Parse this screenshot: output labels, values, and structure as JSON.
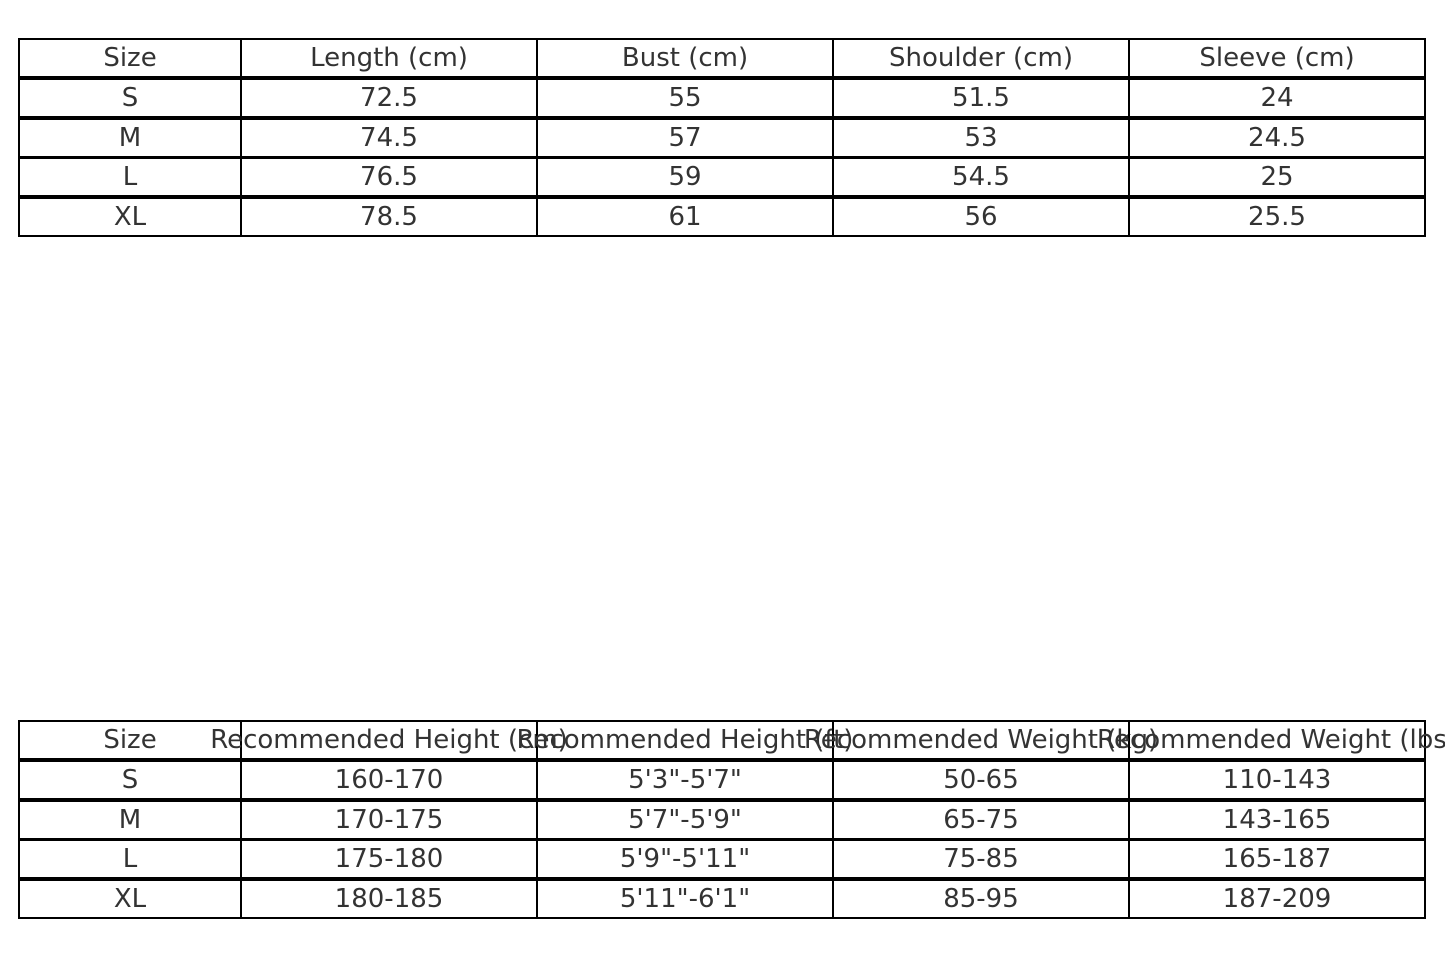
{
  "chart_data": [
    {
      "type": "table",
      "columns": [
        "Size",
        "Length (cm)",
        "Bust (cm)",
        "Shoulder (cm)",
        "Sleeve (cm)"
      ],
      "rows": [
        [
          "S",
          "72.5",
          "55",
          "51.5",
          "24"
        ],
        [
          "M",
          "74.5",
          "57",
          "53",
          "24.5"
        ],
        [
          "L",
          "76.5",
          "59",
          "54.5",
          "25"
        ],
        [
          "XL",
          "78.5",
          "61",
          "56",
          "25.5"
        ]
      ]
    },
    {
      "type": "table",
      "columns": [
        "Size",
        "Recommended Height (cm)",
        "Recommended Height (ft)",
        "Recommended Weight (kg)",
        "Recommended Weight (lbs)"
      ],
      "rows": [
        [
          "S",
          "160-170",
          "5'3\"-5'7\"",
          "50-65",
          "110-143"
        ],
        [
          "M",
          "170-175",
          "5'7\"-5'9\"",
          "65-75",
          "143-165"
        ],
        [
          "L",
          "175-180",
          "5'9\"-5'11\"",
          "75-85",
          "165-187"
        ],
        [
          "XL",
          "180-185",
          "5'11\"-6'1\"",
          "85-95",
          "187-209"
        ]
      ]
    }
  ]
}
